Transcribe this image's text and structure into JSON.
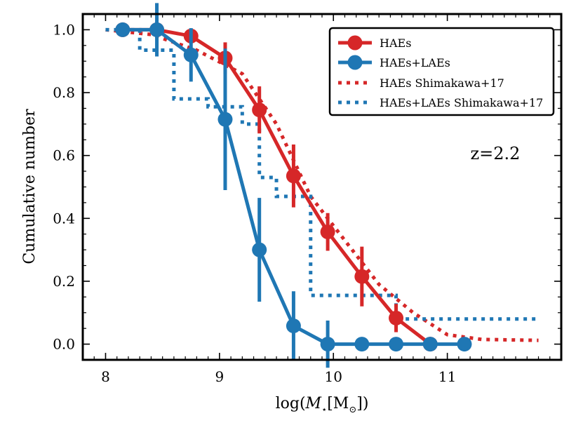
{
  "chart_data": {
    "type": "line",
    "title": "",
    "xlabel": "log(M⋆[M⊙])",
    "ylabel": "Cumulative number",
    "xlim": [
      7.8,
      12.0
    ],
    "ylim": [
      -0.05,
      1.05
    ],
    "xticks": [
      8,
      9,
      10,
      11
    ],
    "xtick_labels": [
      "8",
      "9",
      "10",
      "11"
    ],
    "yticks": [
      0.0,
      0.2,
      0.4,
      0.6,
      0.8,
      1.0
    ],
    "ytick_labels": [
      "0.0",
      "0.2",
      "0.4",
      "0.6",
      "0.8",
      "1.0"
    ],
    "annotation": "z=2.2",
    "legend_position": "top-right",
    "series": [
      {
        "name": "HAEs",
        "style": "solid-marker",
        "color": "#d62728",
        "x": [
          8.15,
          8.45,
          8.75,
          9.05,
          9.35,
          9.65,
          9.95,
          10.25,
          10.55,
          10.85
        ],
        "y": [
          1.0,
          1.0,
          0.98,
          0.91,
          0.745,
          0.535,
          0.357,
          0.215,
          0.083,
          0.0
        ],
        "err": [
          0.0,
          0.0,
          0.02,
          0.05,
          0.075,
          0.1,
          0.06,
          0.095,
          0.045,
          0.0
        ]
      },
      {
        "name": "HAEs+LAEs",
        "style": "solid-marker",
        "color": "#1f77b4",
        "x": [
          8.15,
          8.45,
          8.75,
          9.05,
          9.35,
          9.65,
          9.95,
          10.25,
          10.55,
          10.85,
          11.15
        ],
        "y": [
          1.0,
          1.0,
          0.92,
          0.715,
          0.3,
          0.058,
          0.0,
          0.0,
          0.0,
          0.0,
          0.0
        ],
        "err": [
          0.0,
          0.085,
          0.085,
          0.225,
          0.165,
          0.11,
          0.075,
          0.0,
          0.0,
          0.0,
          0.0
        ]
      },
      {
        "name": "HAEs Shimakawa+17",
        "style": "dotted",
        "color": "#d62728",
        "x": [
          8.0,
          8.4,
          8.8,
          9.2,
          9.5,
          9.8,
          10.1,
          10.4,
          10.7,
          11.0,
          11.3,
          11.8
        ],
        "y": [
          1.0,
          0.985,
          0.935,
          0.86,
          0.7,
          0.47,
          0.33,
          0.19,
          0.1,
          0.03,
          0.015,
          0.012
        ]
      },
      {
        "name": "HAEs+LAEs Shimakawa+17",
        "style": "dotted-step",
        "color": "#1f77b4",
        "x": [
          8.0,
          8.3,
          8.6,
          8.9,
          9.2,
          9.35,
          9.5,
          9.8,
          10.55,
          11.8
        ],
        "y": [
          1.0,
          0.935,
          0.78,
          0.755,
          0.7,
          0.53,
          0.47,
          0.155,
          0.08,
          0.08
        ]
      }
    ]
  }
}
